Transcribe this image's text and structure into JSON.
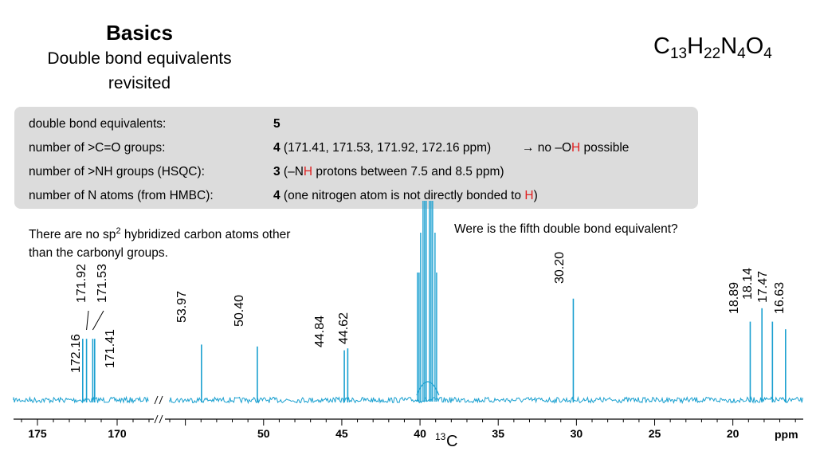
{
  "header": {
    "title": "Basics",
    "subtitle_line1": "Double bond equivalents",
    "subtitle_line2": "revisited"
  },
  "formula": {
    "c": "C",
    "c_n": "13",
    "h": "H",
    "h_n": "22",
    "n": "N",
    "n_n": "4",
    "o": "O",
    "o_n": "4"
  },
  "info_box": {
    "row1": {
      "label": "double bond equivalents:",
      "value": "5"
    },
    "row2": {
      "label": "number of >C=O groups:",
      "value": "4",
      "value_rest": " (171.41, 171.53, 171.92, 172.16 ppm)",
      "note_pre": "→ no –O",
      "note_red": "H",
      "note_post": " possible"
    },
    "row3": {
      "label": "number of >NH groups (HSQC):",
      "value": "3",
      "value_pre": " (–N",
      "value_red": "H",
      "value_post": " protons between 7.5 and 8.5 ppm)"
    },
    "row4": {
      "label": "number of N atoms (from HMBC):",
      "value": "4",
      "value_pre": " (one nitrogen atom is not directly bonded to ",
      "value_red": "H",
      "value_post": ")"
    }
  },
  "notes": {
    "left_pre": "There are no sp",
    "left_sup": "2",
    "left_post": " hybridized carbon atoms other",
    "left_line2": "than the carbonyl groups.",
    "right": "Were is the fifth double bond equivalent?"
  },
  "chart_data": {
    "type": "line",
    "title": "",
    "xlabel_sup": "13",
    "xlabel_main": "C",
    "xunit": "ppm",
    "axis_break": true,
    "axis_segments": [
      {
        "from": 176.5,
        "to": 168.0,
        "ticks": [
          175,
          170
        ]
      },
      {
        "from": 56.0,
        "to": 15.5,
        "ticks": [
          50,
          45,
          40,
          35,
          30,
          25,
          20
        ]
      }
    ],
    "line_color": "#1aa0d0",
    "solvent_peak_ppm": 39.5,
    "peaks": [
      {
        "ppm": 172.16,
        "label": "172.16",
        "height": 0.32
      },
      {
        "ppm": 171.92,
        "label": "171.92",
        "height": 0.32
      },
      {
        "ppm": 171.53,
        "label": "171.53",
        "height": 0.32
      },
      {
        "ppm": 171.41,
        "label": "171.41",
        "height": 0.32
      },
      {
        "ppm": 53.97,
        "label": "53.97",
        "height": 0.29
      },
      {
        "ppm": 50.4,
        "label": "50.40",
        "height": 0.28
      },
      {
        "ppm": 44.84,
        "label": "44.84",
        "height": 0.26
      },
      {
        "ppm": 44.62,
        "label": "44.62",
        "height": 0.27
      },
      {
        "ppm": 30.2,
        "label": "30.20",
        "height": 0.53
      },
      {
        "ppm": 18.89,
        "label": "18.89",
        "height": 0.41
      },
      {
        "ppm": 18.14,
        "label": "18.14",
        "height": 0.48
      },
      {
        "ppm": 17.47,
        "label": "17.47",
        "height": 0.41
      },
      {
        "ppm": 16.63,
        "label": "16.63",
        "height": 0.37
      }
    ]
  }
}
